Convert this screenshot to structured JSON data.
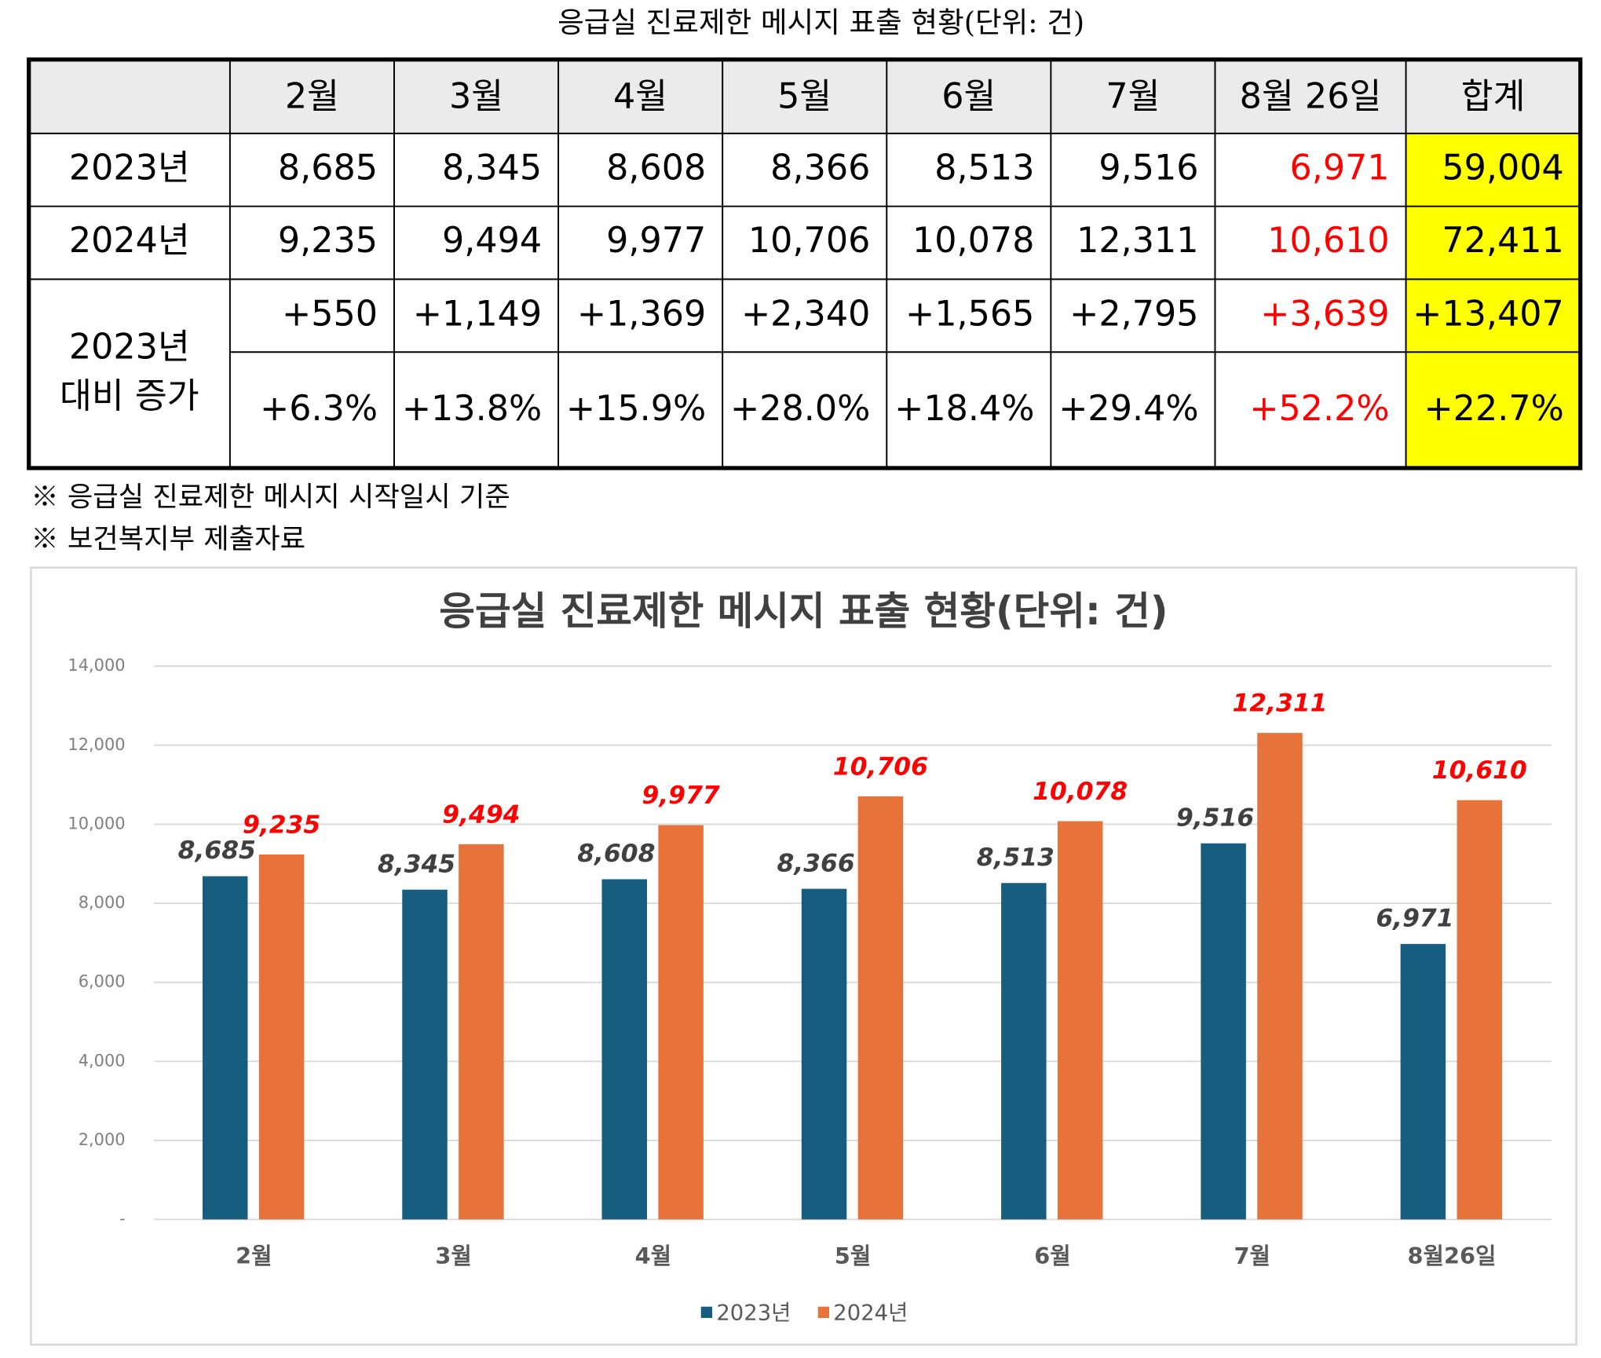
{
  "title": "응급실 진료제한 메시지 표출 현황(단위: 건)",
  "table": {
    "header": [
      "2월",
      "3월",
      "4월",
      "5월",
      "6월",
      "7월",
      "8월 26일",
      "합계"
    ],
    "rows": [
      [
        "2023년",
        "8,685",
        "8,345",
        "8,608",
        "8,366",
        "8,513",
        "9,516",
        "6,971",
        "59,004"
      ],
      [
        "2024년",
        "9,235",
        "9,494",
        "9,977",
        "10,706",
        "10,078",
        "12,311",
        "10,610",
        "72,411"
      ]
    ],
    "increase": {
      "label": [
        "2023년",
        "대비 증가"
      ],
      "rows": [
        [
          "+550",
          "+1,149",
          "+1,369",
          "+2,340",
          "+1,565",
          "+2,795",
          "+3,639",
          "+13,407"
        ],
        [
          "+6.3%",
          "+13.8%",
          "+15.9%",
          "+28.0%",
          "+18.4%",
          "+29.4%",
          "+52.2%",
          "+22.7%"
        ]
      ]
    }
  },
  "notes": [
    "※ 응급실 진료제한 메시지 시작일시 기준",
    "※ 보건복지부 제출자료"
  ],
  "chart_data": {
    "type": "bar",
    "title": "응급실 진료제한 메시지 표출 현황(단위: 건)",
    "categories": [
      "2월",
      "3월",
      "4월",
      "5월",
      "6월",
      "7월",
      "8월26일"
    ],
    "series": [
      {
        "name": "2023년",
        "color": "#175d80",
        "label_color": "#404040",
        "values": [
          8685,
          8345,
          8608,
          8366,
          8513,
          9516,
          6971
        ],
        "value_labels": [
          "8,685",
          "8,345",
          "8,608",
          "8,366",
          "8,513",
          "9,516",
          "6,971"
        ]
      },
      {
        "name": "2024년",
        "color": "#e8733a",
        "label_color": "#ff0000",
        "values": [
          9235,
          9494,
          9977,
          10706,
          10078,
          12311,
          10610
        ],
        "value_labels": [
          "9,235",
          "9,494",
          "9,977",
          "10,706",
          "10,078",
          "12,311",
          "10,610"
        ]
      }
    ],
    "ylim": [
      0,
      14000
    ],
    "yticks": [
      {
        "value": 0,
        "label": "-"
      },
      {
        "value": 2000,
        "label": "2,000"
      },
      {
        "value": 4000,
        "label": "4,000"
      },
      {
        "value": 6000,
        "label": "6,000"
      },
      {
        "value": 8000,
        "label": "8,000"
      },
      {
        "value": 10000,
        "label": "10,000"
      },
      {
        "value": 12000,
        "label": "12,000"
      },
      {
        "value": 14000,
        "label": "14,000"
      }
    ],
    "grid": true,
    "legend": "bottom"
  }
}
